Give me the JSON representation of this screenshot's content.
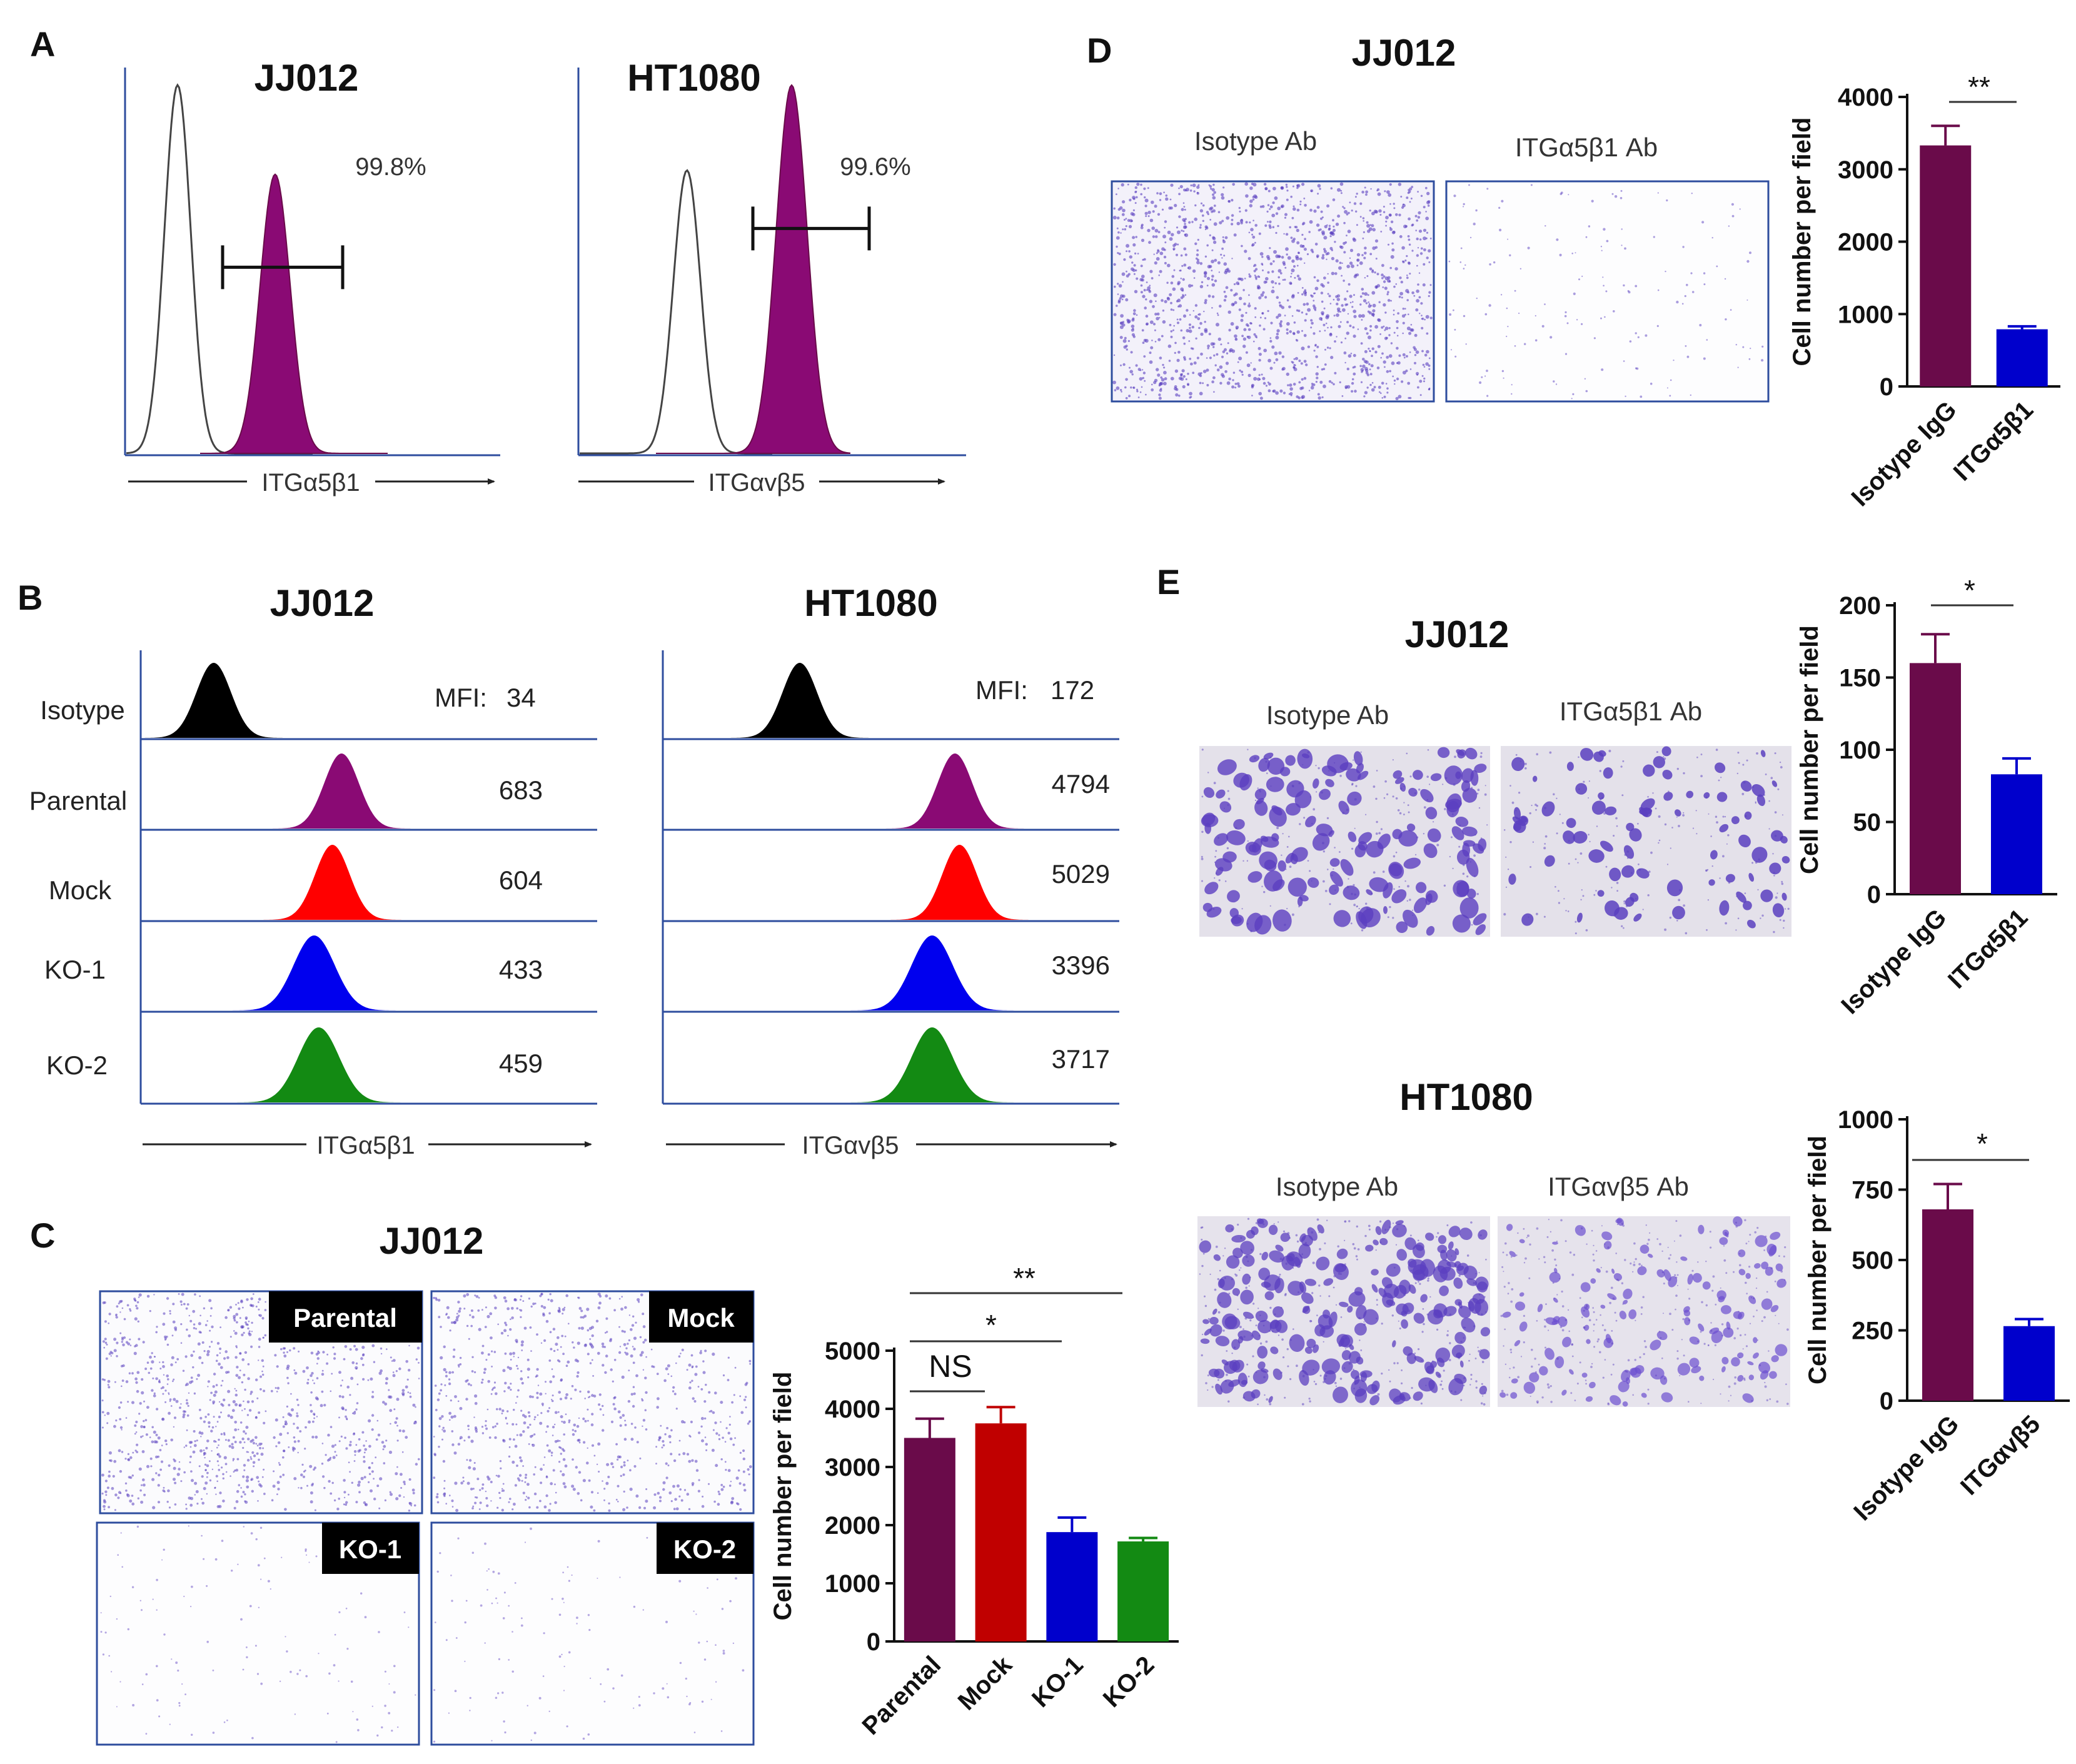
{
  "colors": {
    "maroon": "#6a0b4a",
    "purple_fill": "#8a0a74",
    "red": "#c00000",
    "blue": "#0000cc",
    "green": "#138a13",
    "axis_blue": "#2e4d9e",
    "stain": "#5a3fc0"
  },
  "panel_A": {
    "letter": "A",
    "plots": [
      {
        "title": "JJ012",
        "percent": "99.8%",
        "axis_label": "ITGα5β1",
        "gate_from": 0.26,
        "gate_to": 0.58,
        "gate_level": 0.48,
        "peak_iso": 0.14,
        "peak_pos": 0.4,
        "iso_height": 0.95,
        "pos_height": 0.72
      },
      {
        "title": "HT1080",
        "percent": "99.6%",
        "axis_label": "ITGαvβ5",
        "gate_from": 0.45,
        "gate_to": 0.75,
        "gate_level": 0.58,
        "peak_iso": 0.28,
        "peak_pos": 0.55,
        "iso_height": 0.73,
        "pos_height": 0.95
      }
    ]
  },
  "panel_B": {
    "letter": "B",
    "plots": [
      {
        "title": "JJ012",
        "mfi_prefix": "MFI:",
        "axis_label": "ITGα5β1",
        "rows": [
          {
            "label": "Isotype",
            "value": "34",
            "peak": 0.16,
            "color": "#000000"
          },
          {
            "label": "Parental",
            "value": "683",
            "peak": 0.44,
            "color": "#8a0a74"
          },
          {
            "label": "Mock",
            "value": "604",
            "peak": 0.42,
            "color": "#ff0000"
          },
          {
            "label": "KO-1",
            "value": "433",
            "peak": 0.38,
            "color": "#0000ee"
          },
          {
            "label": "KO-2",
            "value": "459",
            "peak": 0.39,
            "color": "#138a13"
          }
        ]
      },
      {
        "title": "HT1080",
        "mfi_prefix": "MFI:",
        "axis_label": "ITGαvβ5",
        "rows": [
          {
            "label": "",
            "value": "172",
            "peak": 0.3,
            "color": "#000000"
          },
          {
            "label": "",
            "value": "4794",
            "peak": 0.64,
            "color": "#8a0a74"
          },
          {
            "label": "",
            "value": "5029",
            "peak": 0.65,
            "color": "#ff0000"
          },
          {
            "label": "",
            "value": "3396",
            "peak": 0.59,
            "color": "#0000ee"
          },
          {
            "label": "",
            "value": "3717",
            "peak": 0.59,
            "color": "#138a13"
          }
        ]
      }
    ]
  },
  "panel_C": {
    "letter": "C",
    "title": "JJ012",
    "images": [
      "Parental",
      "Mock",
      "KO-1",
      "KO-2"
    ],
    "sig_labels": [
      "NS",
      "*",
      "**"
    ]
  },
  "panel_D": {
    "letter": "D",
    "title": "JJ012",
    "image_labels": [
      "Isotype Ab",
      "ITGα5β1 Ab"
    ],
    "sig_label": "**"
  },
  "panel_E": {
    "letter": "E",
    "groups": [
      {
        "title": "JJ012",
        "image_labels": [
          "Isotype Ab",
          "ITGα5β1 Ab"
        ],
        "sig_label": "*"
      },
      {
        "title": "HT1080",
        "image_labels": [
          "Isotype Ab",
          "ITGαvβ5 Ab"
        ],
        "sig_label": "*"
      }
    ]
  },
  "chart_data": [
    {
      "id": "C",
      "type": "bar",
      "categories": [
        "Parental",
        "Mock",
        "KO-1",
        "KO-2"
      ],
      "values": [
        3500,
        3750,
        1880,
        1720
      ],
      "errors": [
        330,
        280,
        250,
        60
      ],
      "colors": [
        "#6a0b4a",
        "#c00000",
        "#0000cc",
        "#138a13"
      ],
      "ylabel": "Cell number per field",
      "ylim": [
        0,
        5000
      ],
      "yticks": [
        0,
        1000,
        2000,
        3000,
        4000,
        5000
      ]
    },
    {
      "id": "D",
      "type": "bar",
      "categories": [
        "Isotype IgG",
        "ITGα5β1"
      ],
      "values": [
        3330,
        790
      ],
      "errors": [
        270,
        40
      ],
      "colors": [
        "#6a0b4a",
        "#0000cc"
      ],
      "ylabel": "Cell number per field",
      "ylim": [
        0,
        4000
      ],
      "yticks": [
        0,
        1000,
        2000,
        3000,
        4000
      ]
    },
    {
      "id": "E1",
      "type": "bar",
      "categories": [
        "Isotype IgG",
        "ITGα5β1"
      ],
      "values": [
        160,
        83
      ],
      "errors": [
        20,
        11
      ],
      "colors": [
        "#6a0b4a",
        "#0000cc"
      ],
      "ylabel": "Cell number per field",
      "ylim": [
        0,
        200
      ],
      "yticks": [
        0,
        50,
        100,
        150,
        200
      ]
    },
    {
      "id": "E2",
      "type": "bar",
      "categories": [
        "Isotype IgG",
        "ITGαvβ5"
      ],
      "values": [
        680,
        265
      ],
      "errors": [
        90,
        25
      ],
      "colors": [
        "#6a0b4a",
        "#0000cc"
      ],
      "ylabel": "Cell number per field",
      "ylim": [
        0,
        1000
      ],
      "yticks": [
        0,
        250,
        500,
        750,
        1000
      ]
    }
  ]
}
